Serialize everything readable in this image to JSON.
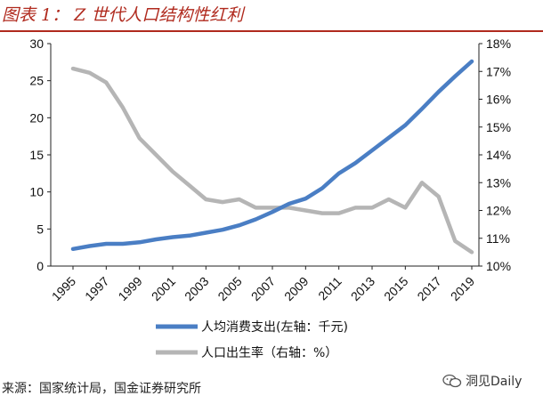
{
  "header": {
    "title": "图表 1： Z 世代人口结构性红利"
  },
  "footer": {
    "source": "来源：国家统计局，国金证券研究所",
    "watermark": "洞见Daily"
  },
  "chart_data": {
    "type": "line",
    "x": [
      1995,
      1996,
      1997,
      1998,
      1999,
      2000,
      2001,
      2002,
      2003,
      2004,
      2005,
      2006,
      2007,
      2008,
      2009,
      2010,
      2011,
      2012,
      2013,
      2014,
      2015,
      2016,
      2017,
      2018,
      2019
    ],
    "x_tick_labels": [
      "1995",
      "1997",
      "1999",
      "2001",
      "2003",
      "2005",
      "2007",
      "2009",
      "2011",
      "2013",
      "2015",
      "2017",
      "2019"
    ],
    "left_axis": {
      "ylim": [
        0,
        30
      ],
      "ticks": [
        "0",
        "5",
        "10",
        "15",
        "20",
        "25",
        "30"
      ]
    },
    "right_axis": {
      "ylim": [
        10,
        18
      ],
      "ticks": [
        "10%",
        "11%",
        "12%",
        "13%",
        "14%",
        "15%",
        "16%",
        "17%",
        "18%"
      ]
    },
    "series": [
      {
        "name": "人均消费支出(左轴：千元)",
        "axis": "left",
        "color": "#4a7ec4",
        "values": [
          2.3,
          2.7,
          3.0,
          3.0,
          3.2,
          3.6,
          3.9,
          4.1,
          4.5,
          4.9,
          5.5,
          6.3,
          7.3,
          8.4,
          9.1,
          10.5,
          12.5,
          13.9,
          15.6,
          17.3,
          19.0,
          21.2,
          23.5,
          25.6,
          27.6
        ]
      },
      {
        "name": "人口出生率（右轴：%）",
        "axis": "right",
        "color": "#b5b5b5",
        "values": [
          17.1,
          16.95,
          16.6,
          15.7,
          14.6,
          14.0,
          13.4,
          12.9,
          12.4,
          12.3,
          12.4,
          12.1,
          12.1,
          12.1,
          12.0,
          11.9,
          11.9,
          12.1,
          12.1,
          12.4,
          12.1,
          13.0,
          12.5,
          10.9,
          10.5
        ]
      }
    ],
    "legend": {
      "placement": "bottom"
    }
  }
}
